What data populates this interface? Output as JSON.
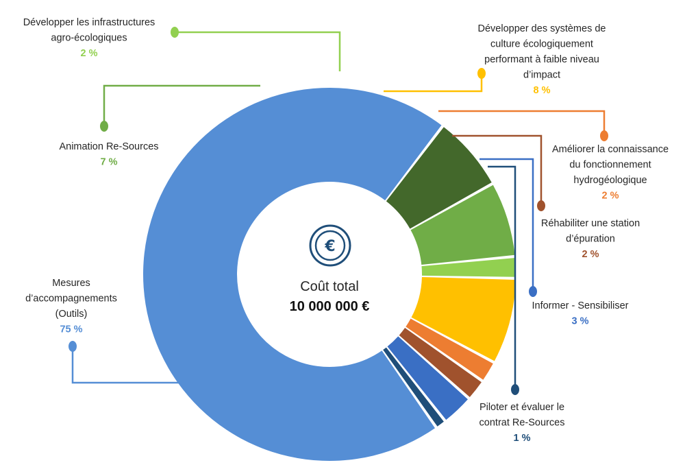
{
  "chart_data": {
    "type": "pie",
    "center": {
      "title": "Coût total",
      "total": "10 000 000 €",
      "icon": "euro-coin-icon"
    },
    "slices": [
      {
        "id": "infra",
        "lines": [
          "Développer les infrastructures",
          "agro-écologiques"
        ],
        "pct_text": "2 %",
        "value": 2,
        "color": "#92d050"
      },
      {
        "id": "systemes",
        "lines": [
          "Développer des systèmes de",
          "culture écologiquement",
          "performant à faible niveau",
          "d’impact"
        ],
        "pct_text": "8 %",
        "value": 8,
        "color": "#ffc000"
      },
      {
        "id": "connaissance",
        "lines": [
          "Améliorer la connaissance",
          "du fonctionnement",
          "hydrogéologique"
        ],
        "pct_text": "2 %",
        "value": 2,
        "color": "#ed7d31"
      },
      {
        "id": "station",
        "lines": [
          "Réhabiliter une station",
          "d’épuration"
        ],
        "pct_text": "2 %",
        "value": 2,
        "color": "#a0522d"
      },
      {
        "id": "informer",
        "lines": [
          "Informer - Sensibiliser"
        ],
        "pct_text": "3 %",
        "value": 3,
        "color": "#3a6fc4"
      },
      {
        "id": "piloter",
        "lines": [
          "Piloter et évaluer le",
          "contrat Re-Sources"
        ],
        "pct_text": "1 %",
        "value": 1,
        "color": "#1f4e79"
      },
      {
        "id": "mesures",
        "lines": [
          "Mesures",
          "d’accompagnements",
          "(Outils)"
        ],
        "pct_text": "75 %",
        "value": 75,
        "color": "#558ed5"
      },
      {
        "id": "animation_dark",
        "lines": [],
        "pct_text": "",
        "value": 7,
        "color": "#43682b"
      },
      {
        "id": "animation",
        "lines": [
          "Animation Re-Sources"
        ],
        "pct_text": "7 %",
        "value": 7,
        "color": "#70ad47"
      }
    ]
  }
}
